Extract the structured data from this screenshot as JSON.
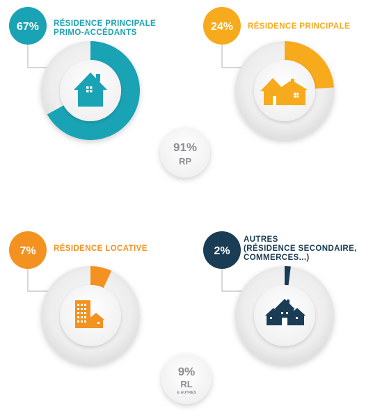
{
  "chart_data": {
    "type": "pie",
    "slices": [
      {
        "label_lines": [
          "RÉSIDENCE PRINCIPALE",
          "PRIMO-ACCÉDANTS"
        ],
        "value": 67,
        "value_label": "67%",
        "color": "#1aa3b5",
        "icon": "house-icon"
      },
      {
        "label_lines": [
          "RÉSIDENCE PRINCIPALE"
        ],
        "value": 24,
        "value_label": "24%",
        "color": "#f7aa1c",
        "icon": "two-houses-icon"
      },
      {
        "label_lines": [
          "RÉSIDENCE LOCATIVE"
        ],
        "value": 7,
        "value_label": "7%",
        "color": "#f39221",
        "icon": "apartment-building-icon"
      },
      {
        "label_lines": [
          "AUTRES",
          "(RÉSIDENCE SECONDAIRE,",
          "COMMERCES...)"
        ],
        "value": 2,
        "value_label": "2%",
        "color": "#1a3c54",
        "icon": "town-houses-icon"
      }
    ],
    "summaries": [
      {
        "value_label": "91%",
        "label": "RP",
        "sublabel": ""
      },
      {
        "value_label": "9%",
        "label": "RL",
        "sublabel": "& AUTRES"
      }
    ]
  }
}
